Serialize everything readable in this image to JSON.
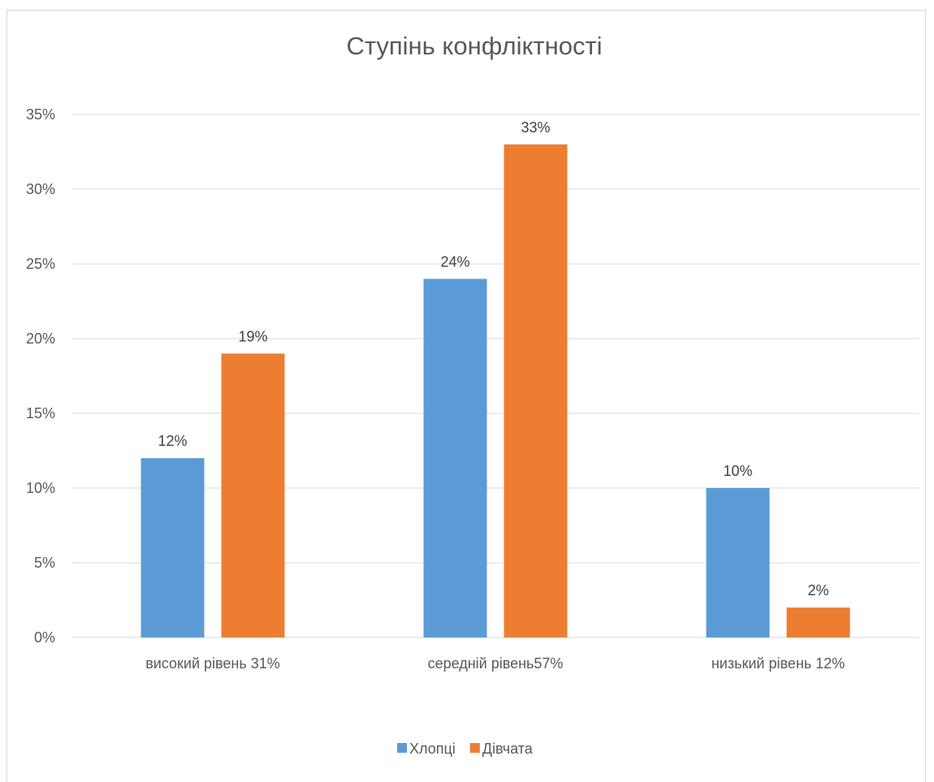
{
  "chart_data": {
    "type": "bar",
    "title": "Ступінь конфліктності",
    "xlabel": "",
    "ylabel": "",
    "categories": [
      "високий рівень 31%",
      "середній рівень57%",
      "низький рівень 12%"
    ],
    "series": [
      {
        "name": "Хлопці",
        "values": [
          12,
          24,
          10
        ],
        "labels": [
          "12%",
          "24%",
          "10%"
        ],
        "color": "#5b9bd5"
      },
      {
        "name": "Дівчата",
        "values": [
          19,
          33,
          2
        ],
        "labels": [
          "19%",
          "33%",
          "2%"
        ],
        "color": "#ed7d31"
      }
    ],
    "ylim": [
      0,
      35
    ],
    "yticks": [
      0,
      5,
      10,
      15,
      20,
      25,
      30,
      35
    ],
    "ytick_labels": [
      "0%",
      "5%",
      "10%",
      "15%",
      "20%",
      "25%",
      "30%",
      "35%"
    ],
    "grid": true,
    "gridline_color": "#d9d9d9",
    "legend_position": "bottom"
  }
}
